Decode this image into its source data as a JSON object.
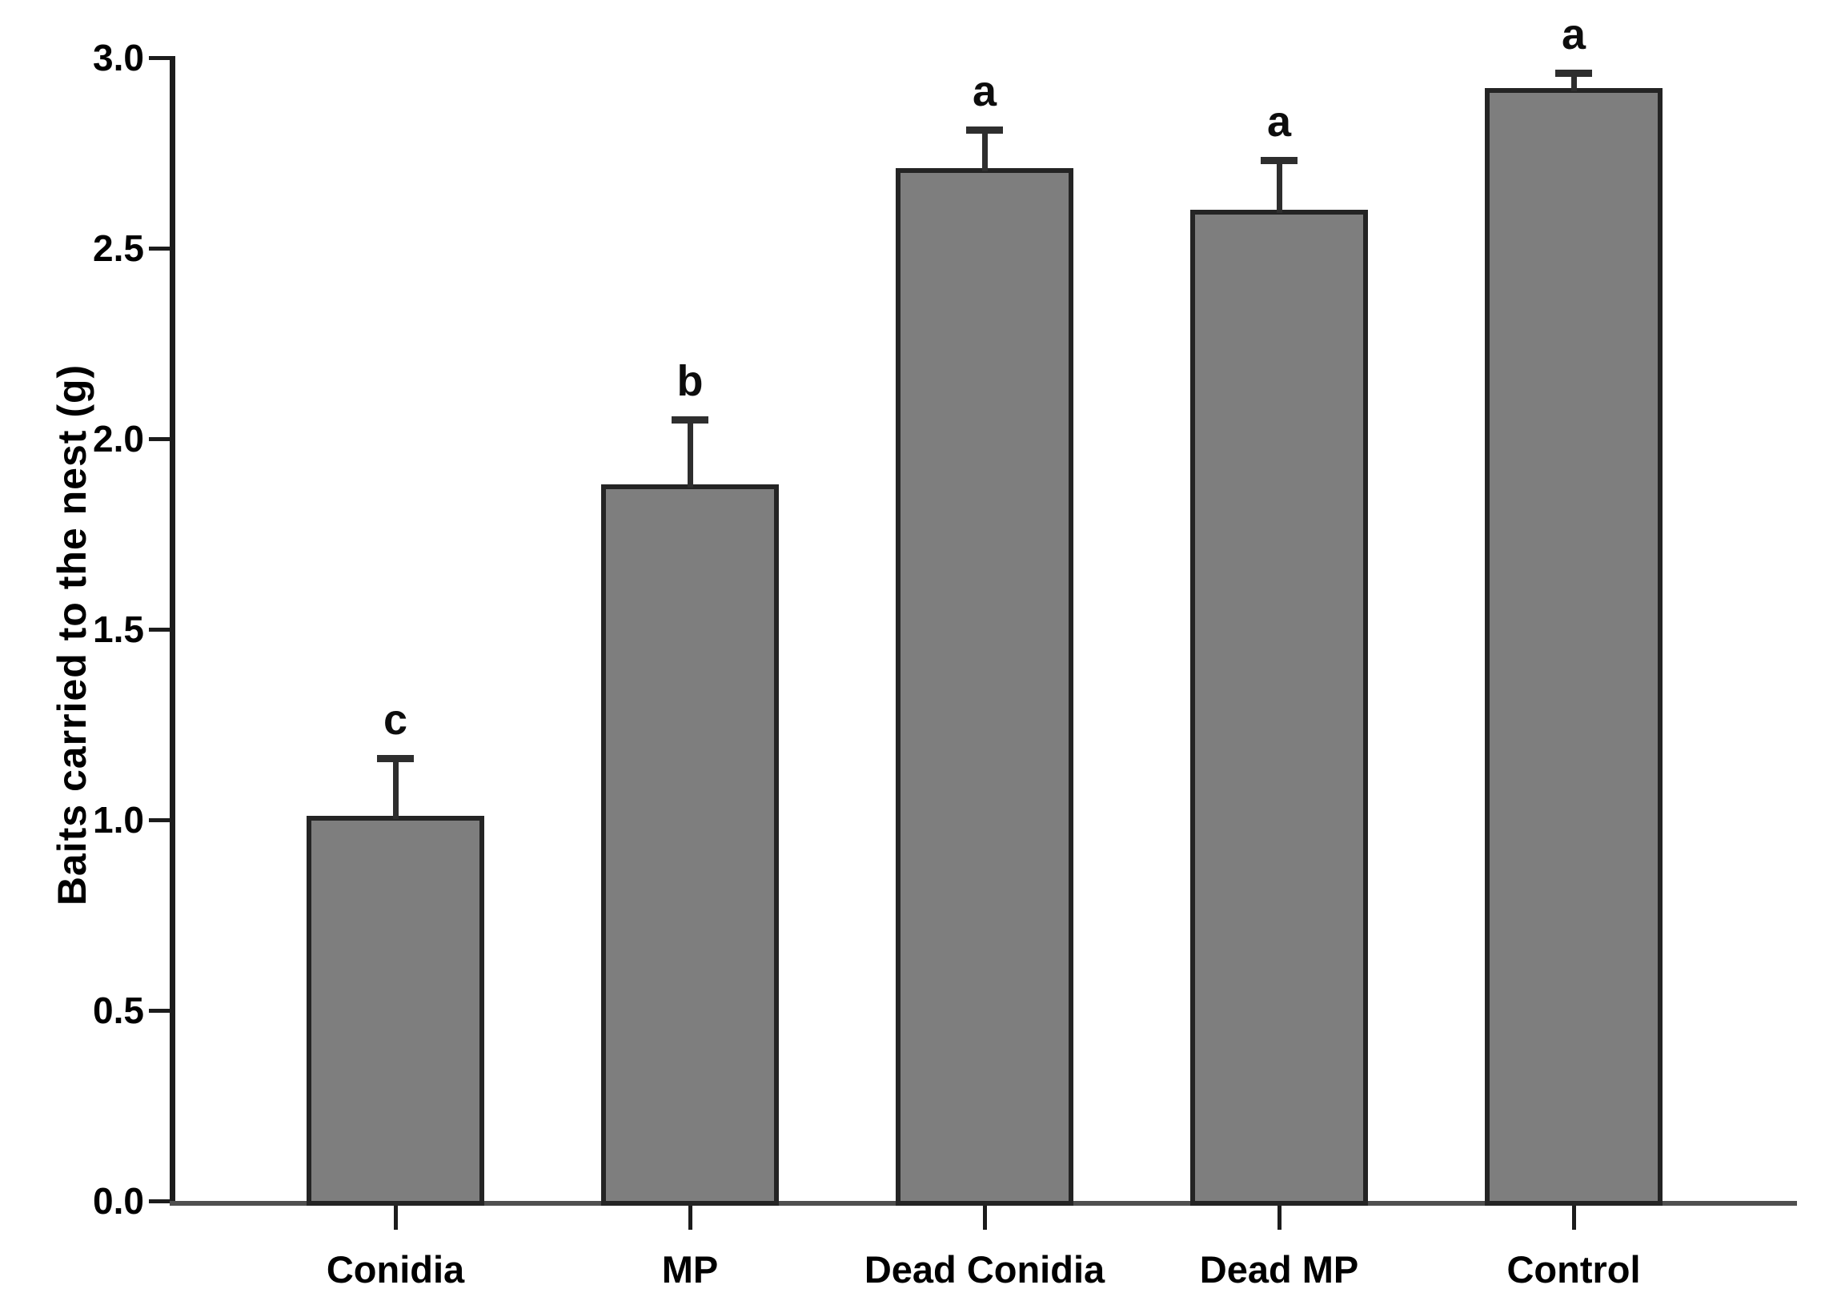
{
  "chart_data": {
    "type": "bar",
    "title": "",
    "categories": [
      "Conidia",
      "MP",
      "Dead Conidia",
      "Dead MP",
      "Control"
    ],
    "values": [
      1.01,
      1.88,
      2.71,
      2.6,
      2.92
    ],
    "errors_upper": [
      0.15,
      0.17,
      0.1,
      0.13,
      0.04
    ],
    "sig_letters": [
      "c",
      "b",
      "a",
      "a",
      "a"
    ],
    "xlabel": "",
    "ylabel": "Baits carried to the nest (g)",
    "ylim": [
      0.0,
      3.0
    ],
    "yticks": [
      0.0,
      0.5,
      1.0,
      1.5,
      2.0,
      2.5,
      3.0
    ],
    "ytick_labels": [
      "0.0",
      "0.5",
      "1.0",
      "1.5",
      "2.0",
      "2.5",
      "3.0"
    ],
    "grid": false,
    "legend": false,
    "bar_fill": "#7e7e7e",
    "bar_border": "#242424",
    "error_bar_color": "#2e2e2e",
    "axis_color": "#1c1c1c",
    "baseline_color": "#4f4f4f",
    "text_color": "#000000",
    "background_color": "#ffffff"
  }
}
